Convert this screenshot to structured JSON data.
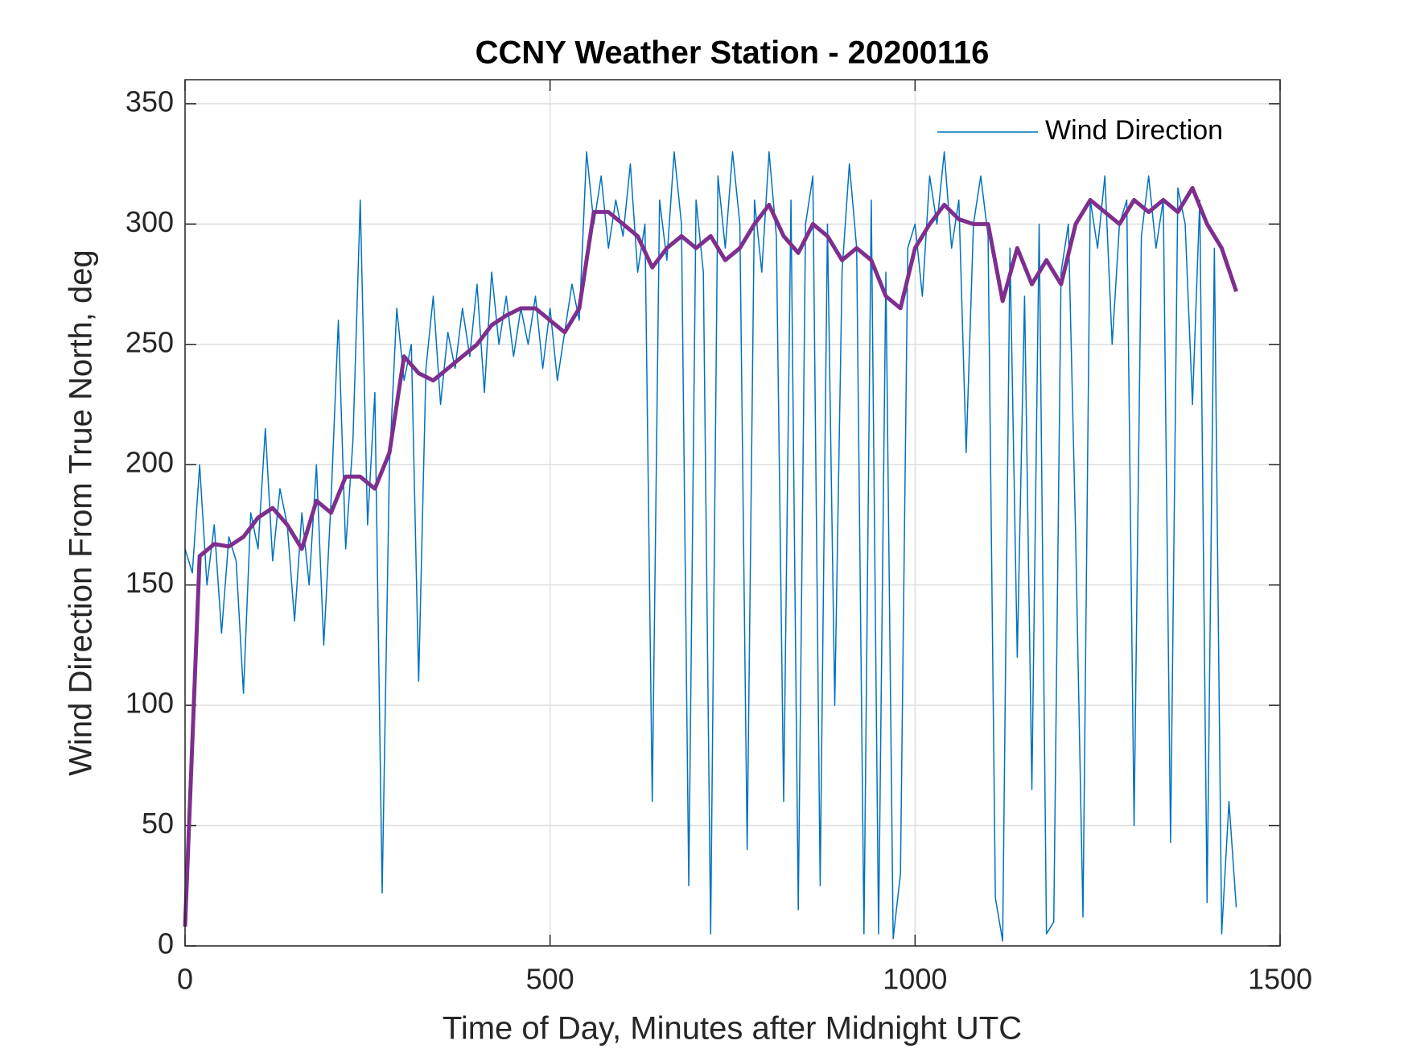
{
  "chart_data": {
    "type": "line",
    "title": "CCNY Weather Station - 20200116",
    "xlabel": "Time of Day, Minutes after Midnight UTC",
    "ylabel": "Wind Direction From True North, deg",
    "xlim": [
      0,
      1500
    ],
    "xticks": [
      0,
      500,
      1000,
      1500
    ],
    "ylim": [
      0,
      360
    ],
    "yticks": [
      0,
      50,
      100,
      150,
      200,
      250,
      300,
      350
    ],
    "grid": true,
    "legend": "northeast",
    "series": [
      {
        "name": "Wind Direction",
        "color": "#0072bd",
        "width": 1.5,
        "x": [
          0,
          10,
          20,
          30,
          40,
          50,
          60,
          70,
          80,
          90,
          100,
          110,
          120,
          130,
          140,
          150,
          160,
          170,
          180,
          190,
          200,
          210,
          220,
          230,
          240,
          250,
          260,
          270,
          280,
          290,
          300,
          310,
          320,
          330,
          340,
          350,
          360,
          370,
          380,
          390,
          400,
          410,
          420,
          430,
          440,
          450,
          460,
          470,
          480,
          490,
          500,
          510,
          520,
          530,
          540,
          550,
          560,
          570,
          580,
          590,
          600,
          610,
          620,
          630,
          640,
          650,
          660,
          670,
          680,
          690,
          700,
          710,
          720,
          730,
          740,
          750,
          760,
          770,
          780,
          790,
          800,
          810,
          820,
          830,
          840,
          850,
          860,
          870,
          880,
          890,
          900,
          910,
          920,
          930,
          940,
          950,
          960,
          970,
          980,
          990,
          1000,
          1010,
          1020,
          1030,
          1040,
          1050,
          1060,
          1070,
          1080,
          1090,
          1100,
          1110,
          1120,
          1130,
          1140,
          1150,
          1160,
          1170,
          1180,
          1190,
          1200,
          1210,
          1220,
          1230,
          1240,
          1250,
          1260,
          1270,
          1280,
          1290,
          1300,
          1310,
          1320,
          1330,
          1340,
          1350,
          1360,
          1370,
          1380,
          1390,
          1400,
          1410,
          1420,
          1430,
          1440
        ],
        "values": [
          165,
          155,
          200,
          150,
          175,
          130,
          170,
          160,
          105,
          180,
          165,
          215,
          160,
          190,
          175,
          135,
          180,
          150,
          200,
          125,
          185,
          260,
          165,
          210,
          310,
          175,
          230,
          22,
          200,
          265,
          235,
          250,
          110,
          240,
          270,
          225,
          255,
          240,
          265,
          245,
          275,
          230,
          280,
          250,
          270,
          245,
          265,
          250,
          270,
          240,
          265,
          235,
          255,
          275,
          260,
          330,
          300,
          320,
          290,
          310,
          295,
          325,
          280,
          300,
          60,
          310,
          285,
          330,
          300,
          25,
          310,
          280,
          5,
          320,
          290,
          330,
          300,
          40,
          310,
          280,
          330,
          295,
          60,
          310,
          15,
          300,
          320,
          25,
          300,
          100,
          280,
          325,
          290,
          5,
          310,
          5,
          280,
          3,
          30,
          290,
          300,
          270,
          320,
          300,
          330,
          290,
          310,
          205,
          300,
          320,
          295,
          20,
          2,
          290,
          120,
          270,
          65,
          300,
          5,
          10,
          280,
          300,
          170,
          12,
          310,
          290,
          320,
          250,
          300,
          310,
          50,
          295,
          320,
          290,
          310,
          43,
          315,
          300,
          225,
          310,
          18,
          290,
          5,
          60,
          16
        ]
      },
      {
        "color": "#7e2f8e",
        "width": 5,
        "x": [
          0,
          20,
          40,
          60,
          80,
          100,
          120,
          140,
          160,
          180,
          200,
          220,
          240,
          260,
          280,
          300,
          320,
          340,
          360,
          380,
          400,
          420,
          440,
          460,
          480,
          500,
          520,
          540,
          560,
          580,
          600,
          620,
          640,
          660,
          680,
          700,
          720,
          740,
          760,
          780,
          800,
          820,
          840,
          860,
          880,
          900,
          920,
          940,
          960,
          980,
          1000,
          1020,
          1040,
          1060,
          1080,
          1100,
          1120,
          1140,
          1160,
          1180,
          1200,
          1220,
          1240,
          1260,
          1280,
          1300,
          1320,
          1340,
          1360,
          1380,
          1400,
          1420,
          1440
        ],
        "values": [
          8,
          162,
          167,
          166,
          170,
          178,
          182,
          175,
          165,
          185,
          180,
          195,
          195,
          190,
          205,
          245,
          238,
          235,
          240,
          245,
          250,
          258,
          262,
          265,
          265,
          260,
          255,
          265,
          305,
          305,
          300,
          295,
          282,
          290,
          295,
          290,
          295,
          285,
          290,
          300,
          308,
          295,
          288,
          300,
          295,
          285,
          290,
          285,
          270,
          265,
          290,
          300,
          308,
          302,
          300,
          300,
          268,
          290,
          275,
          285,
          275,
          300,
          310,
          305,
          300,
          310,
          305,
          310,
          305,
          315,
          300,
          290,
          272
        ]
      }
    ]
  }
}
